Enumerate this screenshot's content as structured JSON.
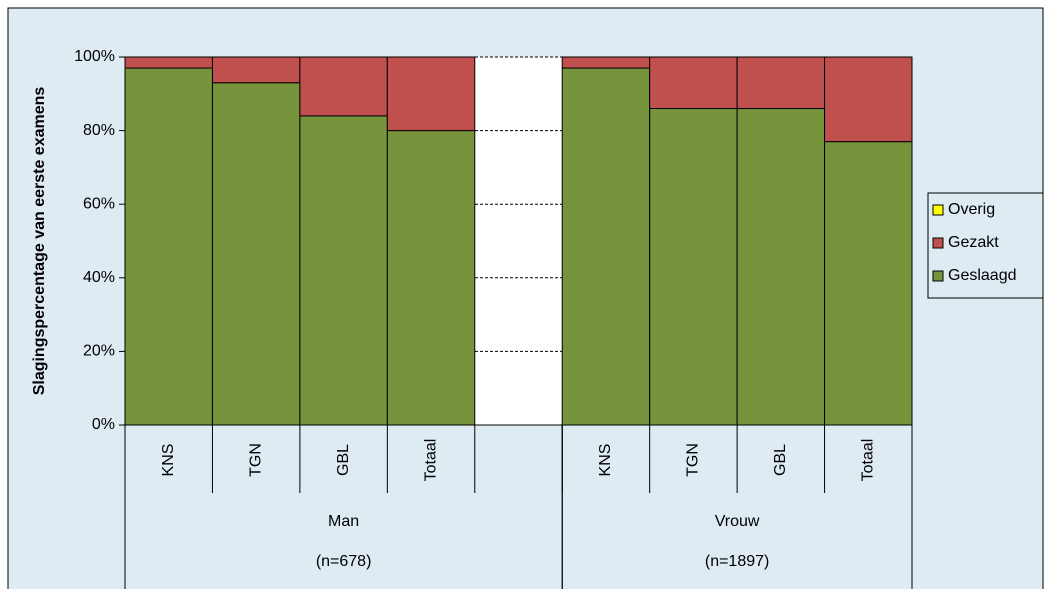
{
  "chart_data": {
    "type": "stacked-bar",
    "ylabel": "Slagingspercentage van eerste examens",
    "categories": [
      "KNS",
      "TGN",
      "GBL",
      "Totaal",
      null,
      "KNS",
      "TGN",
      "GBL",
      "Totaal"
    ],
    "category_groups": [
      {
        "label": "Man",
        "sublabel": "(n=678)"
      },
      {
        "label": "Vrouw",
        "sublabel": "(n=1897)"
      }
    ],
    "series": [
      {
        "name": "Geslaagd",
        "color": "#77933c",
        "values": [
          97,
          93,
          84,
          80,
          null,
          97,
          86,
          86,
          77
        ]
      },
      {
        "name": "Gezakt",
        "color": "#c0504d",
        "values": [
          3,
          7,
          16,
          20,
          null,
          3,
          14,
          14,
          23
        ]
      },
      {
        "name": "Overig",
        "color": "#ffff00",
        "values": [
          0,
          0,
          0,
          0,
          null,
          0,
          0,
          0,
          0
        ]
      }
    ],
    "ylim": [
      0,
      100
    ],
    "yticks": [
      {
        "value": 0,
        "label": "0%"
      },
      {
        "value": 20,
        "label": "20%"
      },
      {
        "value": 40,
        "label": "40%"
      },
      {
        "value": 60,
        "label": "60%"
      },
      {
        "value": 80,
        "label": "80%"
      },
      {
        "value": 100,
        "label": "100%"
      }
    ],
    "grid": true
  }
}
